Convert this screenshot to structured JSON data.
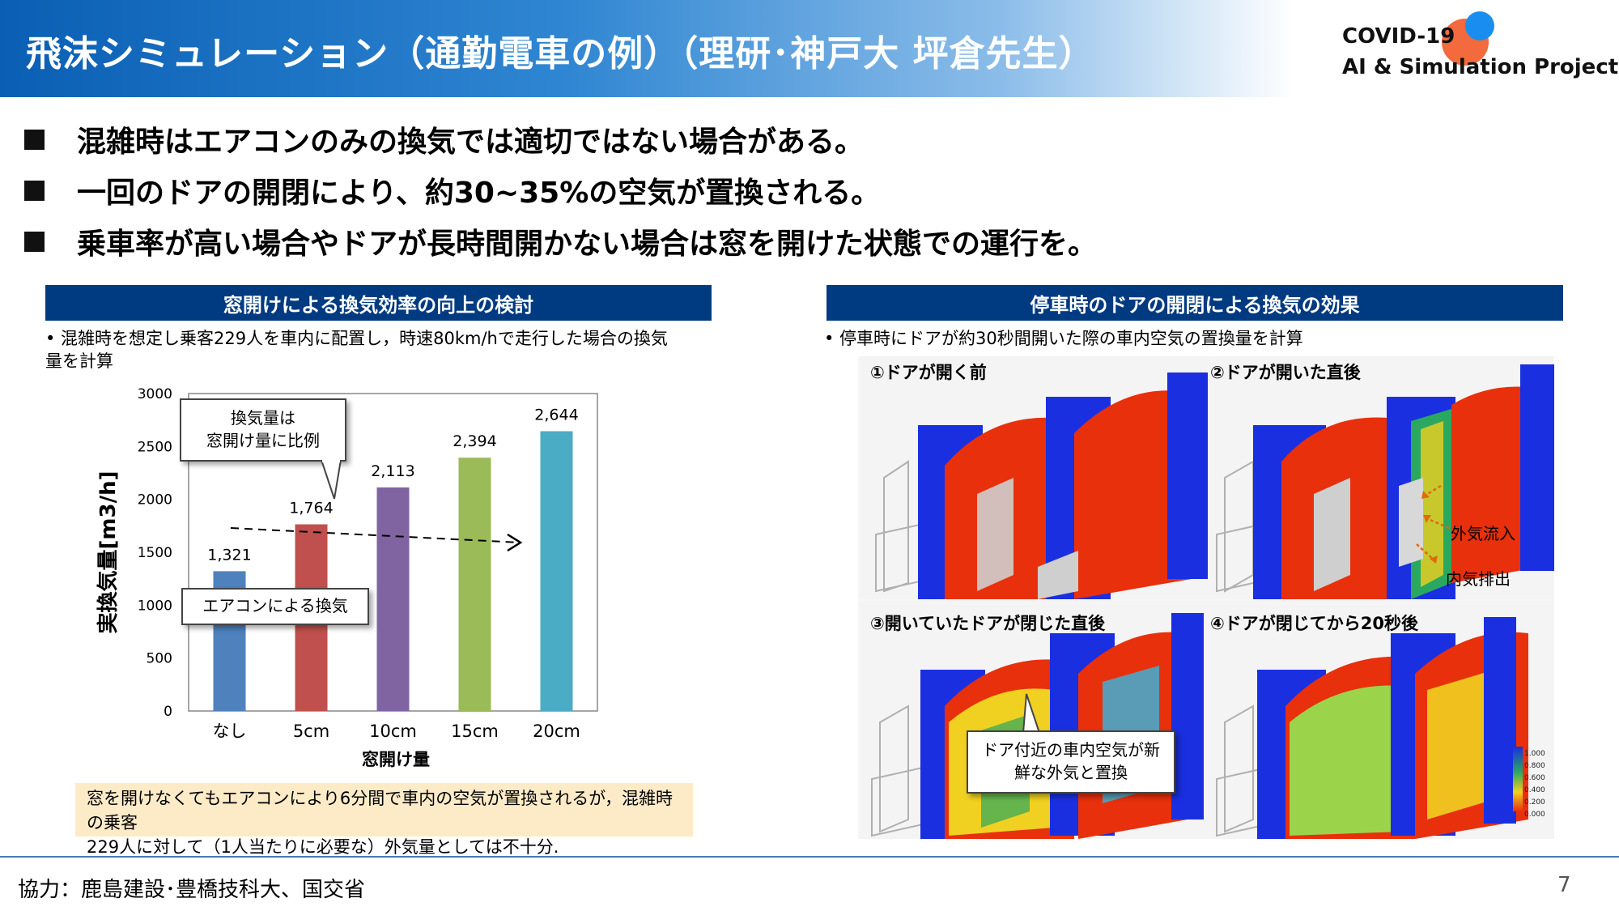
{
  "header": {
    "title": "飛沫シミュレーション（通勤電車の例）（理研･神戸大 坪倉先生）",
    "logo_line1": "COVID-19",
    "logo_line2": "AI & Simulation Project"
  },
  "bullets": [
    "混雑時はエアコンのみの換気では適切ではない場合がある。",
    "一回のドアの開閉により、約30~35%の空気が置換される。",
    "乗車率が高い場合やドアが長時間開かない場合は窓を開けた状態での運行を。"
  ],
  "left_panel": {
    "title": "窓開けによる換気効率の向上の検討",
    "note": "• 混雑時を想定し乗客229人を車内に配置し，時速80km/hで走行した場合の換気\n   量を計算",
    "callout_top": "換気量は\n窓開け量に比例",
    "callout_bottom": "エアコンによる換気",
    "summary": "窓を開けなくてもエアコンにより6分間で車内の空気が置換されるが，混雑時の乗客\n229人に対して（1人当たりに必要な）外気量としては不十分."
  },
  "chart_data": {
    "type": "bar",
    "categories": [
      "なし",
      "5cm",
      "10cm",
      "15cm",
      "20cm"
    ],
    "values": [
      1321,
      1764,
      2113,
      2394,
      2644
    ],
    "value_labels": [
      "1,321",
      "1,764",
      "2,113",
      "2,394",
      "2,644"
    ],
    "colors": [
      "#4f81bd",
      "#c0504d",
      "#8064a2",
      "#9bbb59",
      "#4bacc6"
    ],
    "xlabel": "窓開け量",
    "ylabel": "実換気量[m3/h]",
    "ylim": [
      0,
      3000
    ],
    "yticks": [
      0,
      500,
      1000,
      1500,
      2000,
      2500,
      3000
    ],
    "grid": false,
    "legend": "none"
  },
  "right_panel": {
    "title": "停車時のドアの開閉による換気の効果",
    "note": "• 停車時にドアが約30秒間開いた際の車内空気の置換量を計算",
    "labels": [
      "①ドアが開く前",
      "②ドアが開いた直後",
      "③開いていたドアが閉じた直後",
      "④ドアが閉じてから20秒後"
    ],
    "annot_inflow": "外気流入",
    "annot_outflow": "内気排出",
    "callout": "ドア付近の車内空気が新\n鮮な外気と置換",
    "legend_values": [
      "1.000",
      "0.800",
      "0.600",
      "0.400",
      "0.200",
      "0.000"
    ]
  },
  "footer": {
    "credit": "協力：鹿島建設･豊橋技科大、国交省",
    "page": "7"
  }
}
